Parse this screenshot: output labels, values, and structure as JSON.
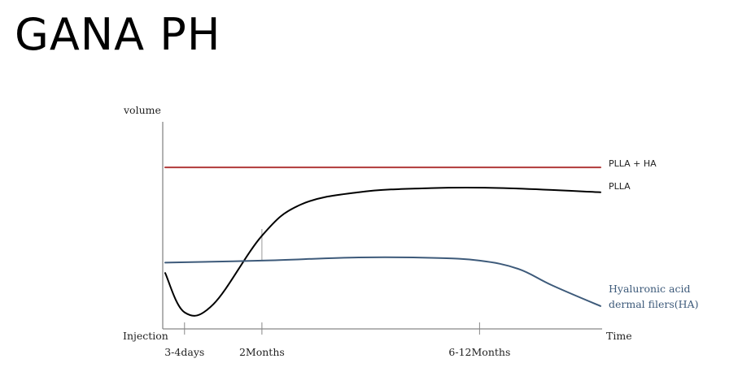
{
  "header": {
    "title": "GANA PH"
  },
  "chart_data": {
    "type": "line",
    "title": "",
    "xlabel": "Time",
    "ylabel": "volume",
    "x_origin_label": "Injection",
    "x_tick_labels": [
      "3-4days",
      "2Months",
      "6-12Months"
    ],
    "x_tick_positions": [
      0.4,
      2.0,
      6.5
    ],
    "xlim": [
      0,
      9
    ],
    "ylim": [
      0,
      100
    ],
    "grid": false,
    "legend": "inline labels at right end of each line",
    "series": [
      {
        "name": "PLLA + HA",
        "color": "#b03a3a",
        "x": [
          0,
          9
        ],
        "y": [
          78,
          78
        ]
      },
      {
        "name": "PLLA",
        "color": "#000000",
        "x": [
          0,
          0.4,
          1.0,
          2.0,
          2.8,
          4.0,
          5.5,
          7.0,
          9.0
        ],
        "y": [
          27,
          8,
          12,
          45,
          60,
          66,
          68,
          68,
          66
        ]
      },
      {
        "name_lines": [
          "Hyaluronic acid",
          "dermal filers(HA)"
        ],
        "color": "#3d5a7a",
        "x": [
          0,
          2.0,
          4.0,
          5.5,
          6.5,
          7.3,
          8.0,
          9.0
        ],
        "y": [
          32,
          33,
          34.5,
          34.3,
          33,
          29,
          21,
          11
        ]
      }
    ]
  }
}
